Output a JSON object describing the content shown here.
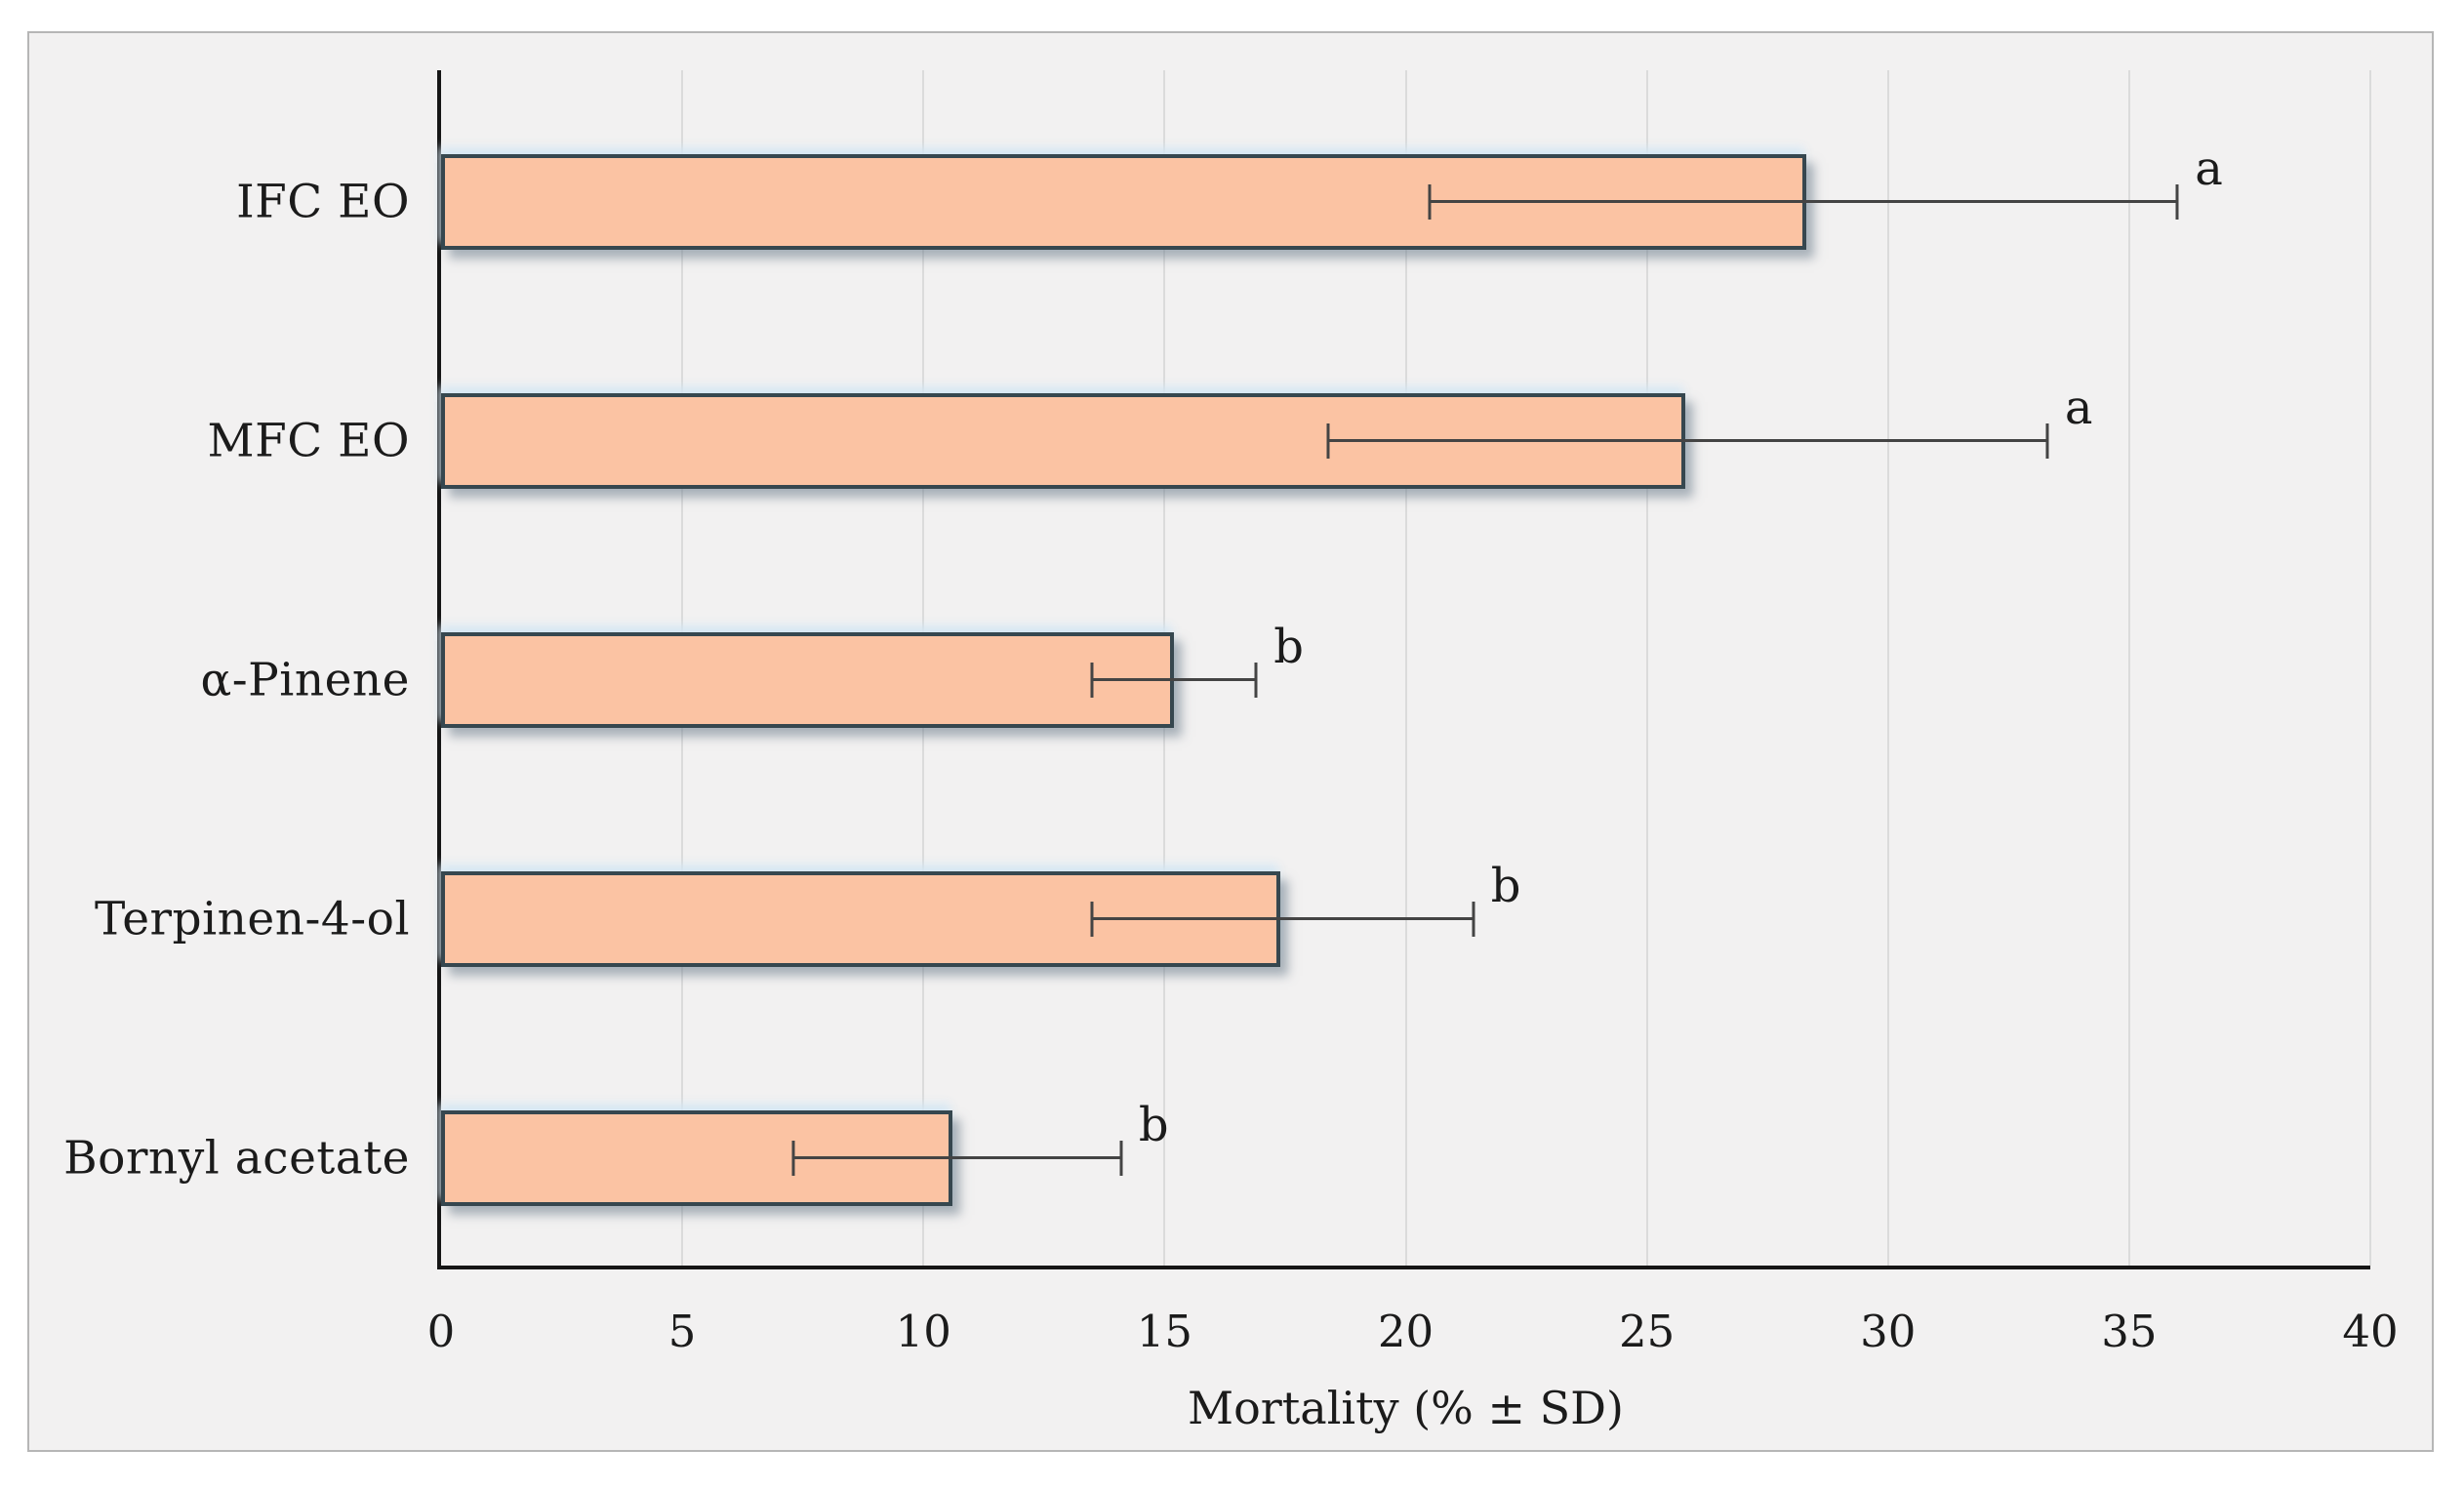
{
  "figure": {
    "background": "#FFFFFF",
    "panel_background": "#F2F1F1",
    "panel_border_color": "#B6B6B6",
    "gridline_color": "#DBDBDB",
    "axis_color": "#161616"
  },
  "chart_data": {
    "type": "bar",
    "orientation": "horizontal",
    "title": "",
    "xlabel": "Mortality (% ± SD)",
    "ylabel": "",
    "xlim": [
      0,
      40
    ],
    "xticks": [
      0,
      5,
      10,
      15,
      20,
      25,
      30,
      35,
      40
    ],
    "grid": "vertical",
    "legend": "none",
    "categories": [
      "IFC EO",
      "MFC EO",
      "α-Pinene",
      "Terpinen-4-ol",
      "Bornyl acetate"
    ],
    "values": [
      28.3,
      25.8,
      15.2,
      17.4,
      10.6
    ],
    "error_low": [
      20.5,
      18.4,
      13.5,
      13.5,
      7.3
    ],
    "error_high": [
      36.0,
      33.3,
      16.9,
      21.4,
      14.1
    ],
    "sig_letters": [
      "a",
      "a",
      "b",
      "b",
      "b"
    ],
    "bar_fill": "#FBC3A3",
    "bar_border": "#36474F",
    "error_color": "#444444"
  }
}
